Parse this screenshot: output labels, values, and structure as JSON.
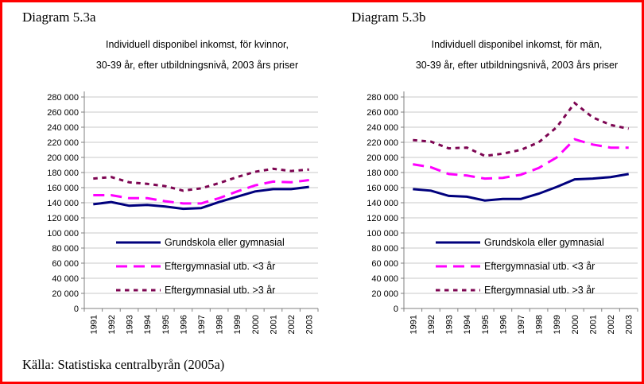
{
  "page": {
    "border_color": "#ff0000",
    "source_note": "Källa: Statistiska centralbyrån (2005a)"
  },
  "chart_data": [
    {
      "type": "line",
      "heading": "Diagram 5.3a",
      "title": "Individuell disponibel inkomst, för kvinnor, 30-39 år, efter utbildningsnivå, 2003 års priser",
      "title_lines": [
        "Individuell disponibel inkomst, för kvinnor,",
        "30-39 år, efter utbildningsnivå, 2003 års priser"
      ],
      "xlabel": "",
      "ylabel": "",
      "ylim": [
        0,
        280000
      ],
      "ytick_step": 20000,
      "ytick_labels": [
        "0",
        "20 000",
        "40 000",
        "60 000",
        "80 000",
        "100 000",
        "120 000",
        "140 000",
        "160 000",
        "180 000",
        "200 000",
        "220 000",
        "240 000",
        "260 000",
        "280 000"
      ],
      "grid": true,
      "legend_position": "inside-bottom-left",
      "categories": [
        "1991",
        "1992",
        "1993",
        "1994",
        "1995",
        "1996",
        "1997",
        "1998",
        "1999",
        "2000",
        "2001",
        "2002",
        "2003"
      ],
      "series": [
        {
          "name": "Grundskola eller gymnasial",
          "style": "solid",
          "color": "#00007d",
          "values": [
            138000,
            141000,
            136000,
            137000,
            135000,
            132000,
            133000,
            141000,
            148000,
            155000,
            158000,
            158000,
            161000
          ]
        },
        {
          "name": "Eftergymnasial utb. <3 år",
          "style": "dashed",
          "color": "#ff00ff",
          "values": [
            150000,
            150000,
            146000,
            146000,
            142000,
            139000,
            139000,
            146000,
            155000,
            163000,
            168000,
            167000,
            170000
          ]
        },
        {
          "name": "Eftergymnasial utb. >3 år",
          "style": "dotted",
          "color": "#7d0552",
          "values": [
            172000,
            174000,
            167000,
            165000,
            162000,
            156000,
            159000,
            166000,
            174000,
            181000,
            185000,
            182000,
            184000
          ]
        }
      ]
    },
    {
      "type": "line",
      "heading": "Diagram 5.3b",
      "title": "Individuell disponibel inkomst, för män, 30-39 år, efter utbildningsnivå, 2003 års priser",
      "title_lines": [
        "Individuell disponibel inkomst, för män,",
        "30-39 år, efter utbildningsnivå, 2003 års priser"
      ],
      "xlabel": "",
      "ylabel": "",
      "ylim": [
        0,
        280000
      ],
      "ytick_step": 20000,
      "ytick_labels": [
        "0",
        "20 000",
        "40 000",
        "60 000",
        "80 000",
        "100 000",
        "120 000",
        "140 000",
        "160 000",
        "180 000",
        "200 000",
        "220 000",
        "240 000",
        "260 000",
        "280 000"
      ],
      "grid": true,
      "legend_position": "inside-bottom-left",
      "categories": [
        "1991",
        "1992",
        "1993",
        "1994",
        "1995",
        "1996",
        "1997",
        "1998",
        "1999",
        "2000",
        "2001",
        "2002",
        "2003"
      ],
      "series": [
        {
          "name": "Grundskola eller gymnasial",
          "style": "solid",
          "color": "#00007d",
          "values": [
            158000,
            156000,
            149000,
            148000,
            143000,
            145000,
            145000,
            152000,
            161000,
            171000,
            172000,
            174000,
            178000
          ]
        },
        {
          "name": "Eftergymnasial utb. <3 år",
          "style": "dashed",
          "color": "#ff00ff",
          "values": [
            191000,
            187000,
            178000,
            176000,
            172000,
            173000,
            177000,
            186000,
            200000,
            224000,
            217000,
            213000,
            213000
          ]
        },
        {
          "name": "Eftergymnasial utb. >3 år",
          "style": "dotted",
          "color": "#7d0552",
          "values": [
            223000,
            221000,
            212000,
            213000,
            202000,
            205000,
            210000,
            220000,
            240000,
            272000,
            253000,
            243000,
            238000
          ]
        }
      ]
    }
  ]
}
